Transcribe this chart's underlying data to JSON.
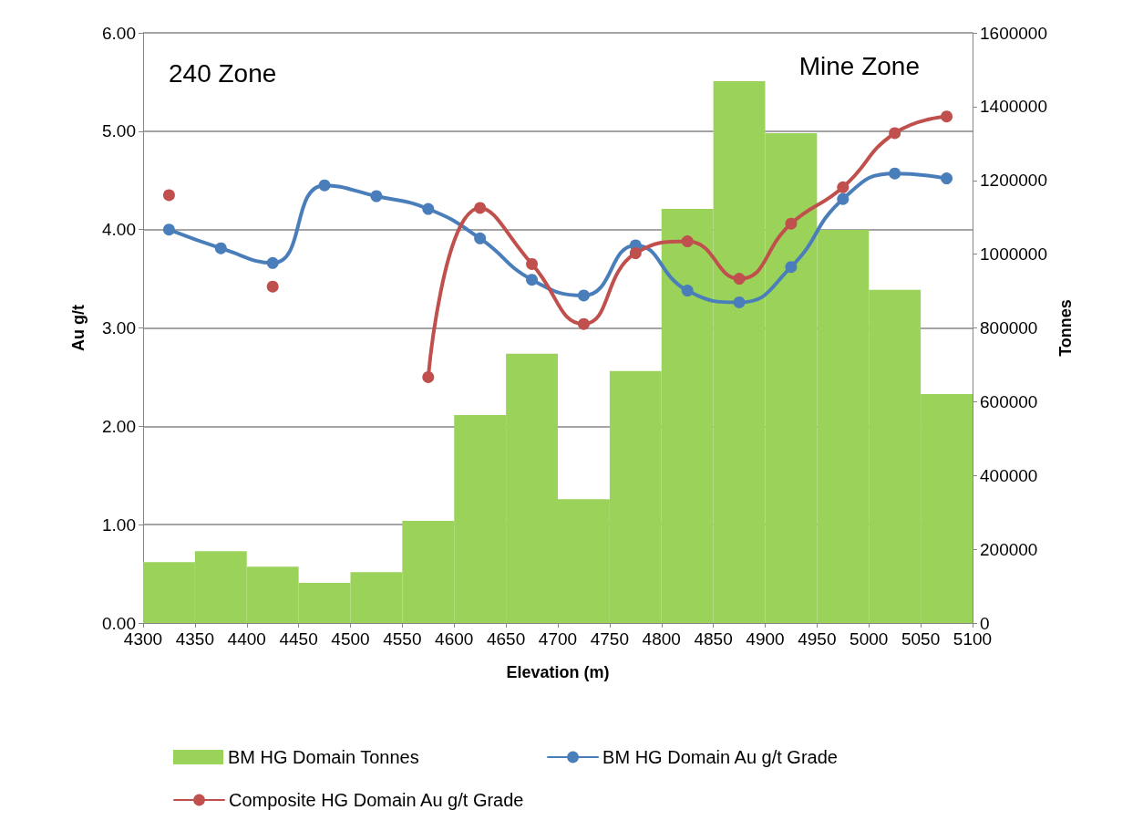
{
  "chart_data": {
    "type": "line",
    "xlabel": "Elevation (m)",
    "ylabel": "Au g/t",
    "y2label": "Tonnes",
    "xlim": [
      4300,
      5100
    ],
    "xticks": [
      4300,
      4350,
      4400,
      4450,
      4500,
      4550,
      4600,
      4650,
      4700,
      4750,
      4800,
      4850,
      4900,
      4950,
      5000,
      5050,
      5100
    ],
    "ylim": [
      0,
      6
    ],
    "yticks": [
      {
        "value": 0,
        "label": "0.00"
      },
      {
        "value": 1,
        "label": "1.00"
      },
      {
        "value": 2,
        "label": "2.00"
      },
      {
        "value": 3,
        "label": "3.00"
      },
      {
        "value": 4,
        "label": "4.00"
      },
      {
        "value": 5,
        "label": "5.00"
      },
      {
        "value": 6,
        "label": "6.00"
      }
    ],
    "y2lim": [
      0,
      1600000
    ],
    "y2ticks": [
      0,
      200000,
      400000,
      600000,
      800000,
      1000000,
      1200000,
      1400000,
      1600000
    ],
    "grid": "y",
    "legend": "bottom",
    "marker": "circle",
    "annotations": [
      "240 Zone",
      "Mine Zone"
    ],
    "series": [
      {
        "name": "BM HG Domain Tonnes",
        "type": "histogram",
        "axis": "y2",
        "color": "#9bd35a",
        "bins": [
          4300,
          4350,
          4400,
          4450,
          4500,
          4550,
          4600,
          4650,
          4700,
          4750,
          4800,
          4850,
          4900,
          4950,
          5000,
          5050,
          5100
        ],
        "values": [
          165000,
          195000,
          153000,
          109000,
          138000,
          277000,
          564000,
          730000,
          336000,
          683000,
          1123000,
          1469000,
          1328000,
          1066000,
          903000,
          621000
        ]
      },
      {
        "name": "BM HG Domain Au g/t Grade",
        "color": "#4a7ebb",
        "x": [
          4325,
          4375,
          4425,
          4475,
          4525,
          4575,
          4625,
          4675,
          4725,
          4775,
          4825,
          4875,
          4925,
          4975,
          5025,
          5075
        ],
        "values": [
          4.0,
          3.81,
          3.66,
          4.45,
          4.34,
          4.21,
          3.91,
          3.49,
          3.33,
          3.84,
          3.38,
          3.26,
          3.62,
          4.31,
          4.57,
          4.52
        ]
      },
      {
        "name": "Composite HG Domain Au g/t Grade",
        "color": "#c0504d",
        "x": [
          4325,
          4375,
          4425,
          4475,
          4525,
          4575,
          4625,
          4675,
          4725,
          4775,
          4825,
          4875,
          4925,
          4975,
          5025,
          5075
        ],
        "values": [
          4.35,
          null,
          3.42,
          null,
          null,
          2.5,
          4.22,
          3.65,
          3.04,
          3.76,
          3.88,
          3.5,
          4.06,
          4.43,
          4.98,
          5.15
        ]
      }
    ]
  }
}
